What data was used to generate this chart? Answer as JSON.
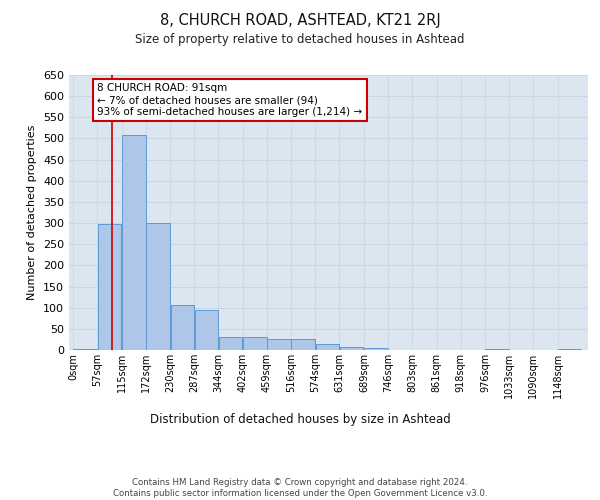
{
  "title": "8, CHURCH ROAD, ASHTEAD, KT21 2RJ",
  "subtitle": "Size of property relative to detached houses in Ashtead",
  "xlabel": "Distribution of detached houses by size in Ashtead",
  "ylabel": "Number of detached properties",
  "bar_labels": [
    "0sqm",
    "57sqm",
    "115sqm",
    "172sqm",
    "230sqm",
    "287sqm",
    "344sqm",
    "402sqm",
    "459sqm",
    "516sqm",
    "574sqm",
    "631sqm",
    "689sqm",
    "746sqm",
    "803sqm",
    "861sqm",
    "918sqm",
    "976sqm",
    "1033sqm",
    "1090sqm",
    "1148sqm"
  ],
  "bar_values": [
    2,
    298,
    507,
    300,
    107,
    95,
    30,
    30,
    27,
    25,
    15,
    8,
    5,
    0,
    0,
    0,
    0,
    3,
    0,
    0,
    3
  ],
  "bar_color": "#aec6e8",
  "bar_edge_color": "#5b9bd5",
  "grid_color": "#c8d4e3",
  "background_color": "#dce6f0",
  "annotation_box_text": "8 CHURCH ROAD: 91sqm\n← 7% of detached houses are smaller (94)\n93% of semi-detached houses are larger (1,214) →",
  "annotation_box_color": "#ffffff",
  "annotation_box_edge_color": "#cc0000",
  "property_line_x": 91,
  "property_line_color": "#cc0000",
  "ylim": [
    0,
    650
  ],
  "yticks": [
    0,
    50,
    100,
    150,
    200,
    250,
    300,
    350,
    400,
    450,
    500,
    550,
    600,
    650
  ],
  "footer_text": "Contains HM Land Registry data © Crown copyright and database right 2024.\nContains public sector information licensed under the Open Government Licence v3.0.",
  "bin_starts": [
    0,
    57,
    115,
    172,
    230,
    287,
    344,
    402,
    459,
    516,
    574,
    631,
    689,
    746,
    803,
    861,
    918,
    976,
    1033,
    1090,
    1148
  ],
  "bin_width": 57
}
